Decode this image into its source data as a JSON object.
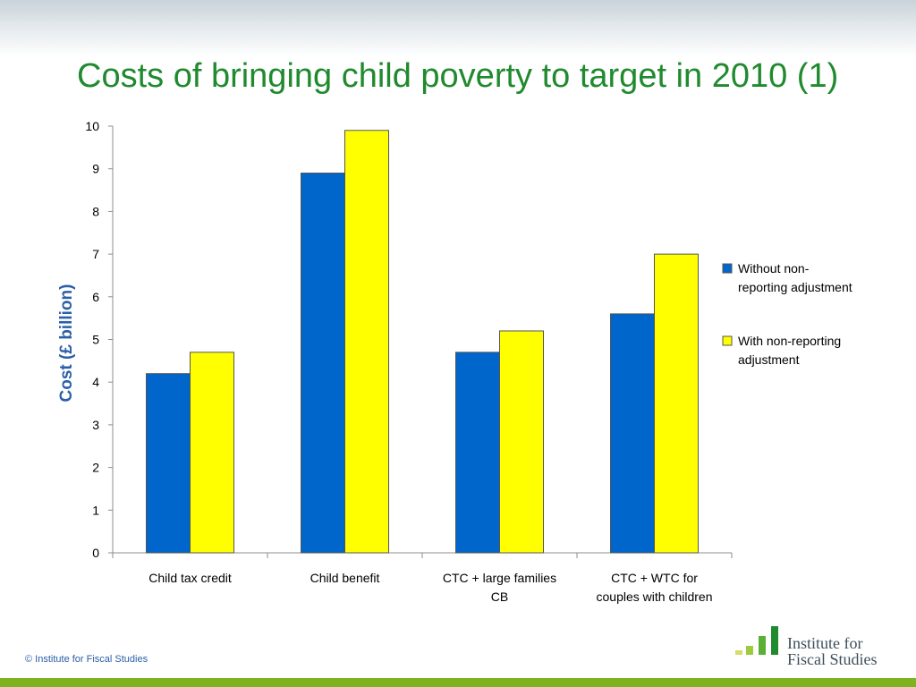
{
  "slide": {
    "title": "Costs of bringing child poverty to target in 2010 (1)",
    "footer": "© Institute for Fiscal Studies",
    "logo_line1": "Institute for",
    "logo_line2": "Fiscal Studies"
  },
  "colors": {
    "title": "#1f8a2e",
    "axis_title": "#2a5fa8",
    "footer_bar": "#7fb21f"
  },
  "chart_data": {
    "type": "bar",
    "title": "",
    "xlabel": "",
    "ylabel": "Cost (£ billion)",
    "ylim": [
      0,
      10
    ],
    "yticks": [
      0,
      1,
      2,
      3,
      4,
      5,
      6,
      7,
      8,
      9,
      10
    ],
    "categories": [
      [
        "Child tax credit"
      ],
      [
        "Child benefit"
      ],
      [
        "CTC + large families",
        "CB"
      ],
      [
        "CTC + WTC for",
        "couples with children"
      ]
    ],
    "series": [
      {
        "name": [
          "Without non-",
          "reporting adjustment"
        ],
        "color": "#0066cc",
        "values": [
          4.2,
          8.9,
          4.7,
          5.6
        ]
      },
      {
        "name": [
          "With non-reporting",
          "adjustment"
        ],
        "color": "#ffff00",
        "values": [
          4.7,
          9.9,
          5.2,
          7.0
        ]
      }
    ],
    "legend_position": "right",
    "grid": false
  }
}
